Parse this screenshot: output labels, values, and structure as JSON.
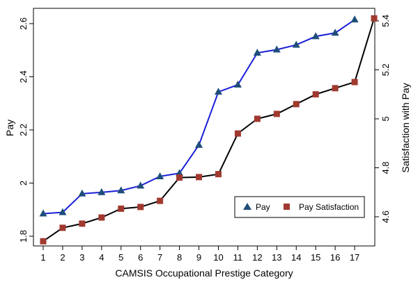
{
  "chart_data": {
    "type": "line",
    "xlabel": "CAMSIS Occupational Prestige Category",
    "ylabel_left": "Pay",
    "ylabel_right": "Satisfaction with Pay",
    "x_ticks": [
      "1",
      "2",
      "3",
      "4",
      "5",
      "6",
      "7",
      "8",
      "9",
      "10",
      "11",
      "12",
      "13",
      "14",
      "15",
      "16",
      "17"
    ],
    "xlim": [
      1,
      18
    ],
    "ylim_left": [
      1.8,
      2.62
    ],
    "yticks_left": [
      "1.8",
      "2",
      "2.2",
      "2.4",
      "2.6"
    ],
    "ylim_right": [
      4.5,
      5.43
    ],
    "yticks_right": [
      "4.6",
      "4.8",
      "5",
      "5.2",
      "5.4"
    ],
    "grid": false,
    "legend_position": "bottom-right",
    "series": [
      {
        "name": "Pay",
        "axis": "left",
        "color": "#1a1fd6",
        "marker_color": "#1f4e79",
        "marker": "triangle",
        "x": [
          1,
          2,
          3,
          4,
          5,
          6,
          7,
          8,
          9,
          10,
          11,
          12,
          13,
          14,
          15,
          16,
          17
        ],
        "values": [
          1.885,
          1.89,
          1.96,
          1.965,
          1.972,
          1.99,
          2.025,
          2.037,
          2.143,
          2.343,
          2.37,
          2.49,
          2.502,
          2.52,
          2.552,
          2.565,
          2.615
        ]
      },
      {
        "name": "Pay Satisfaction",
        "axis": "right",
        "color": "#000000",
        "marker_color": "#a0392f",
        "marker": "square",
        "x": [
          1,
          2,
          3,
          4,
          5,
          6,
          7,
          8,
          9,
          10,
          11,
          12,
          13,
          14,
          15,
          16,
          17,
          18
        ],
        "values": [
          4.5,
          4.555,
          4.572,
          4.597,
          4.633,
          4.64,
          4.665,
          4.76,
          4.762,
          4.774,
          4.94,
          5.0,
          5.02,
          5.06,
          5.1,
          5.125,
          5.15,
          5.41
        ]
      }
    ]
  }
}
